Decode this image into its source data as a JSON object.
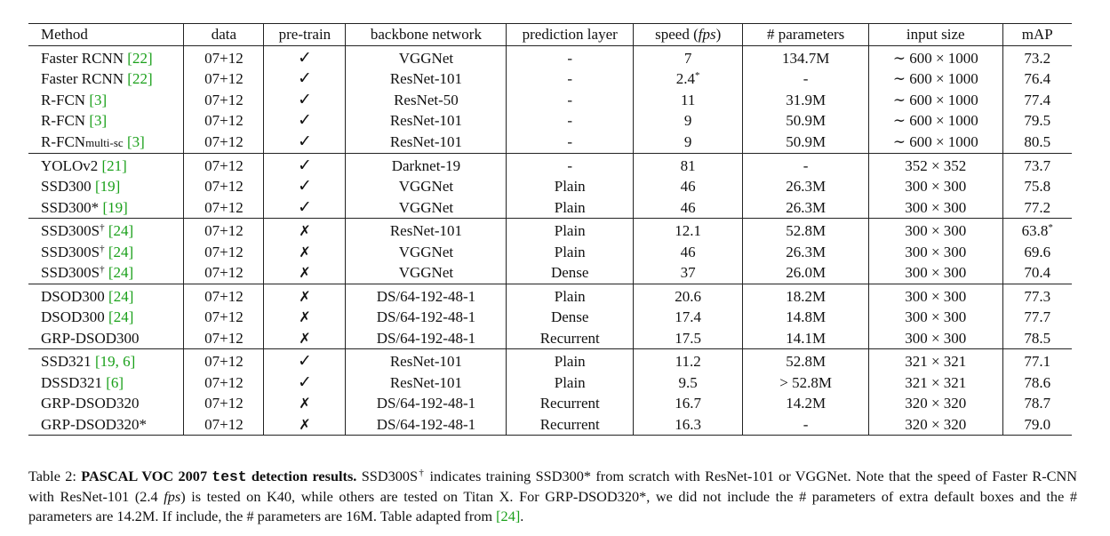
{
  "table": {
    "headers": {
      "method": "Method",
      "data": "data",
      "pretrain": "pre-train",
      "backbone": "backbone network",
      "prediction": "prediction layer",
      "speed_prefix": "speed (",
      "speed_unit": "fps",
      "speed_suffix": ")",
      "params": "# parameters",
      "input": "input size",
      "map": "mAP"
    },
    "groups": [
      [
        {
          "method": "Faster RCNN ",
          "ref": "[22]",
          "data": "07+12",
          "pretrain": true,
          "backbone": "VGGNet",
          "prediction": "-",
          "speed": "7",
          "params": "134.7M",
          "input": "∼ 600 × 1000",
          "map": "73.2"
        },
        {
          "method": "Faster RCNN ",
          "ref": "[22]",
          "data": "07+12",
          "pretrain": true,
          "backbone": "ResNet-101",
          "prediction": "-",
          "speed": "2.4",
          "speed_sup": "*",
          "params": "-",
          "input": "∼ 600 × 1000",
          "map": "76.4"
        },
        {
          "method": "R-FCN ",
          "ref": "[3]",
          "data": "07+12",
          "pretrain": true,
          "backbone": "ResNet-50",
          "prediction": "-",
          "speed": "11",
          "params": "31.9M",
          "input": "∼ 600 × 1000",
          "map": "77.4"
        },
        {
          "method": "R-FCN ",
          "ref": "[3]",
          "data": "07+12",
          "pretrain": true,
          "backbone": "ResNet-101",
          "prediction": "-",
          "speed": "9",
          "params": "50.9M",
          "input": "∼ 600 × 1000",
          "map": "79.5"
        },
        {
          "method": "R-FCN",
          "method_sub": "multi-sc",
          "ref": "[3]",
          "data": "07+12",
          "pretrain": true,
          "backbone": "ResNet-101",
          "prediction": "-",
          "speed": "9",
          "params": "50.9M",
          "input": "∼ 600 × 1000",
          "map": "80.5"
        }
      ],
      [
        {
          "method": "YOLOv2 ",
          "ref": "[21]",
          "data": "07+12",
          "pretrain": true,
          "backbone": "Darknet-19",
          "prediction": "-",
          "speed": "81",
          "params": "-",
          "input": "352 × 352",
          "map": "73.7"
        },
        {
          "method": "SSD300 ",
          "ref": "[19]",
          "data": "07+12",
          "pretrain": true,
          "backbone": "VGGNet",
          "prediction": "Plain",
          "speed": "46",
          "params": "26.3M",
          "input": "300 × 300",
          "map": "75.8"
        },
        {
          "method": "SSD300* ",
          "ref": "[19]",
          "data": "07+12",
          "pretrain": true,
          "backbone": "VGGNet",
          "prediction": "Plain",
          "speed": "46",
          "params": "26.3M",
          "input": "300 × 300",
          "map": "77.2"
        }
      ],
      [
        {
          "method": "SSD300S",
          "method_sup": "†",
          "ref": "[24]",
          "data": "07+12",
          "pretrain": false,
          "backbone": "ResNet-101",
          "prediction": "Plain",
          "speed": "12.1",
          "params": "52.8M",
          "input": "300 × 300",
          "map": "63.8",
          "map_sup": "*"
        },
        {
          "method": "SSD300S",
          "method_sup": "†",
          "ref": "[24]",
          "data": "07+12",
          "pretrain": false,
          "backbone": "VGGNet",
          "prediction": "Plain",
          "speed": "46",
          "params": "26.3M",
          "input": "300 × 300",
          "map": "69.6"
        },
        {
          "method": "SSD300S",
          "method_sup": "†",
          "ref": "[24]",
          "data": "07+12",
          "pretrain": false,
          "backbone": "VGGNet",
          "prediction": "Dense",
          "speed": "37",
          "params": "26.0M",
          "input": "300 × 300",
          "map": "70.4"
        }
      ],
      [
        {
          "method": "DSOD300 ",
          "ref": "[24]",
          "data": "07+12",
          "pretrain": false,
          "backbone": "DS/64-192-48-1",
          "prediction": "Plain",
          "speed": "20.6",
          "params": "18.2M",
          "input": "300 × 300",
          "map": "77.3"
        },
        {
          "method": "DSOD300 ",
          "ref": "[24]",
          "data": "07+12",
          "pretrain": false,
          "backbone": "DS/64-192-48-1",
          "prediction": "Dense",
          "speed": "17.4",
          "params": "14.8M",
          "input": "300 × 300",
          "map": "77.7"
        },
        {
          "method": "GRP-DSOD300",
          "data": "07+12",
          "pretrain": false,
          "backbone": "DS/64-192-48-1",
          "prediction": "Recurrent",
          "speed": "17.5",
          "params": "14.1M",
          "input": "300 × 300",
          "map": "78.5"
        }
      ],
      [
        {
          "method": "SSD321 ",
          "ref": "[19, 6]",
          "data": "07+12",
          "pretrain": true,
          "backbone": "ResNet-101",
          "prediction": "Plain",
          "speed": "11.2",
          "params": "52.8M",
          "input": "321 × 321",
          "map": "77.1"
        },
        {
          "method": "DSSD321 ",
          "ref": "[6]",
          "data": "07+12",
          "pretrain": true,
          "backbone": "ResNet-101",
          "prediction": "Plain",
          "speed": "9.5",
          "params": "> 52.8M",
          "input": "321 × 321",
          "map": "78.6"
        },
        {
          "method": "GRP-DSOD320",
          "data": "07+12",
          "pretrain": false,
          "backbone": "DS/64-192-48-1",
          "prediction": "Recurrent",
          "speed": "16.7",
          "params": "14.2M",
          "input": "320 × 320",
          "map": "78.7"
        },
        {
          "method": "GRP-DSOD320*",
          "data": "07+12",
          "pretrain": false,
          "backbone": "DS/64-192-48-1",
          "prediction": "Recurrent",
          "speed": "16.3",
          "params": "-",
          "input": "320 × 320",
          "map": "79.0"
        }
      ]
    ],
    "check_glyph": "✓",
    "cross_glyph": "✗",
    "check_icon": "check-icon",
    "cross_icon": "cross-icon"
  },
  "caption": {
    "label": "Table 2: ",
    "title_a": "PASCAL VOC 2007 ",
    "title_code": "test",
    "title_b": " detection results.",
    "text1": " SSD300S",
    "sup": "†",
    "text2": " indicates training SSD300* from scratch with ResNet-101 or VGGNet. Note that the speed of Faster R-CNN with ResNet-101 (2.4 ",
    "fps": "fps",
    "text3": ") is tested on K40, while others are tested on Titan X. For GRP-DSOD320*, we did not include the # parameters of extra default boxes and the # parameters are 14.2M. If include, the # parameters are 16M. Table adapted from ",
    "ref": "[24]",
    "end": "."
  }
}
